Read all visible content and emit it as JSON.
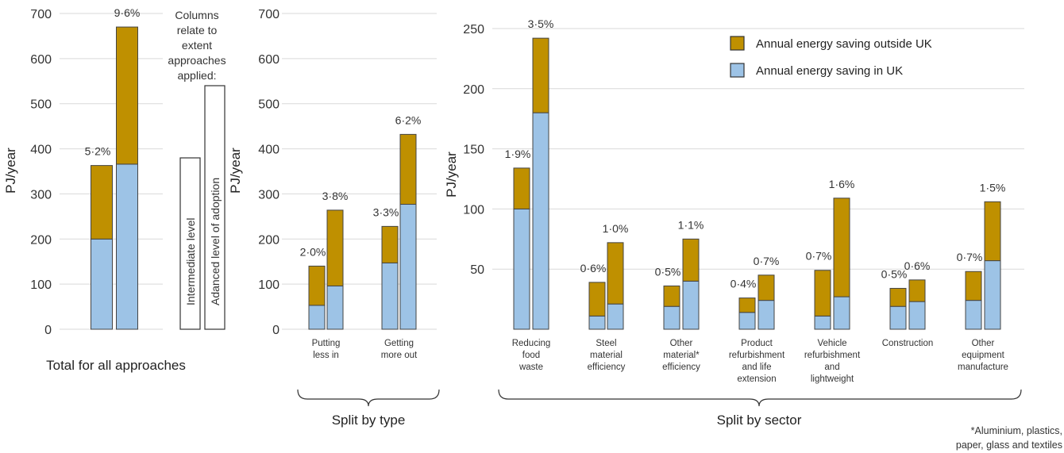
{
  "colors": {
    "in_uk": "#9dc3e6",
    "outside_uk": "#bf9000"
  },
  "legend": {
    "outside_uk": "Annual energy saving outside UK",
    "in_uk": "Annual energy saving in UK"
  },
  "note": {
    "columns_relate": [
      "Columns",
      "relate to",
      "extent",
      "approaches",
      "applied:"
    ],
    "intermediate": "Intermediate level",
    "advanced": "Adanced level of adoption",
    "footnote": [
      "*Aluminium, plastics,",
      "paper, glass and textiles"
    ]
  },
  "chart_data": [
    {
      "type": "bar",
      "stacked": true,
      "title": "Total for all approaches",
      "ylabel": "PJ/year",
      "ylim": [
        0,
        700
      ],
      "yticks": [
        0,
        100,
        200,
        300,
        400,
        500,
        600,
        700
      ],
      "grid": true,
      "categories": [
        ""
      ],
      "levels": [
        "Intermediate level",
        "Adanced level of adoption"
      ],
      "series": [
        {
          "name": "Annual energy saving in UK",
          "values": [
            [
              200,
              366
            ]
          ]
        },
        {
          "name": "Annual energy saving outside UK",
          "values": [
            [
              163,
              304
            ]
          ]
        }
      ],
      "labels": [
        [
          "5·2%",
          "9·6%"
        ]
      ]
    },
    {
      "type": "bar",
      "stacked": true,
      "title": "Split by type",
      "ylabel": "PJ/year",
      "ylim": [
        0,
        700
      ],
      "yticks": [
        0,
        100,
        200,
        300,
        400,
        500,
        600,
        700
      ],
      "grid": true,
      "categories": [
        "Putting less in",
        "Getting more out"
      ],
      "series": [
        {
          "name": "Annual energy saving in UK",
          "values": [
            [
              53,
              96
            ],
            [
              147,
              277
            ]
          ]
        },
        {
          "name": "Annual energy saving outside UK",
          "values": [
            [
              87,
              168
            ],
            [
              81,
              155
            ]
          ]
        }
      ],
      "labels": [
        [
          "2·0%",
          "3·8%"
        ],
        [
          "3·3%",
          "6·2%"
        ]
      ]
    },
    {
      "type": "bar",
      "stacked": true,
      "title": "Split by sector",
      "ylabel": "PJ/year",
      "ylim": [
        0,
        250
      ],
      "yticks": [
        50,
        100,
        150,
        200,
        250
      ],
      "grid": true,
      "legend": "top-right",
      "categories": [
        "Reducing food waste",
        "Steel material efficiency",
        "Other material* efficiency",
        "Product refurbishment and life extension",
        "Vehicle refurbishment and lightweight",
        "Construction",
        "Other equipment manufacture"
      ],
      "series": [
        {
          "name": "Annual energy saving in UK",
          "values": [
            [
              100,
              180
            ],
            [
              11,
              21
            ],
            [
              19,
              40
            ],
            [
              14,
              24
            ],
            [
              11,
              27
            ],
            [
              19,
              23
            ],
            [
              24,
              57
            ]
          ]
        },
        {
          "name": "Annual energy saving outside UK",
          "values": [
            [
              34,
              62
            ],
            [
              28,
              51
            ],
            [
              17,
              35
            ],
            [
              12,
              21
            ],
            [
              38,
              82
            ],
            [
              15,
              18
            ],
            [
              24,
              49
            ]
          ]
        }
      ],
      "labels": [
        [
          "1·9%",
          "3·5%"
        ],
        [
          "0·6%",
          "1·0%"
        ],
        [
          "0·5%",
          "1·1%"
        ],
        [
          "0·4%",
          "0·7%"
        ],
        [
          "0·7%",
          "1·6%"
        ],
        [
          "0·5%",
          "0·6%"
        ],
        [
          "0·7%",
          "1·5%"
        ]
      ]
    }
  ]
}
